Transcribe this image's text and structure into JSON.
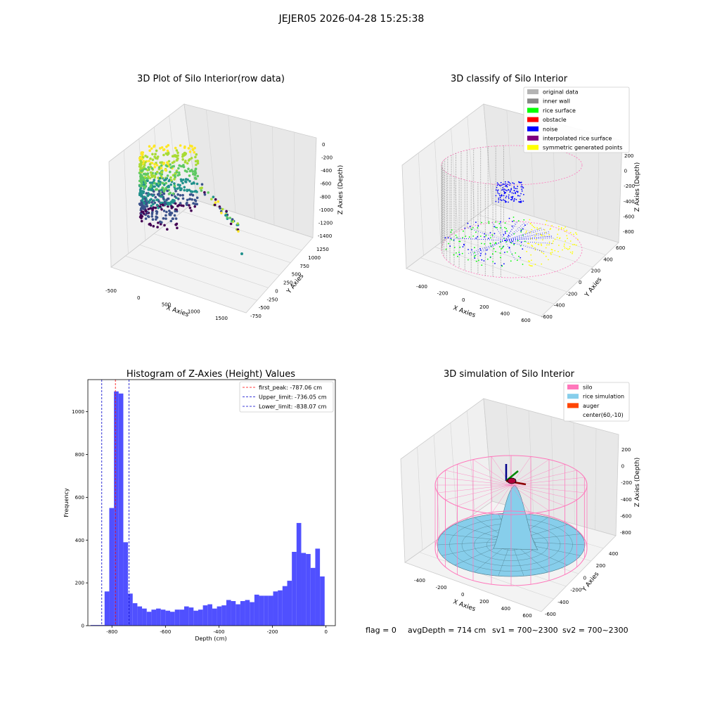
{
  "figure": {
    "suptitle": "JEJER05 2026-04-28 15:25:38",
    "footer": {
      "flag": "flag = 0",
      "avg_depth": "avgDepth = 714 cm",
      "sv1": "sv1 = 700~2300",
      "sv2": "sv2 = 700~2300"
    }
  },
  "colors": {
    "hist_bar": "#5050ff",
    "first_peak": "#ff0000",
    "limits": "#0000cc",
    "silo_wire": "#ff77bb",
    "rice_sim": "#87ceeb",
    "auger": "#ff4500",
    "original": "#b4b4b4",
    "inner_wall": "#888888",
    "rice_surface": "#00ff00",
    "obstacle": "#ff0000",
    "noise": "#0000ff",
    "interp": "#800080",
    "symmetric": "#ffff00"
  },
  "panels": {
    "raw": {
      "title": "3D Plot of Silo Interior(row data)",
      "x_label": "X Axies",
      "y_label": "Y Axies",
      "z_label": "Z Axies (Depth)",
      "x_ticks": [
        "-500",
        "0",
        "500",
        "1000",
        "1500"
      ],
      "y_ticks": [
        "1250",
        "1000",
        "750",
        "500",
        "250",
        "0",
        "-250",
        "-500",
        "-750"
      ],
      "z_ticks": [
        "0",
        "-200",
        "-400",
        "-600",
        "-800",
        "-1000",
        "-1200",
        "-1400"
      ]
    },
    "classify": {
      "title": "3D classify of Silo Interior",
      "x_label": "X Axies",
      "y_label": "Y Axies",
      "z_label": "Z Axies (Depth)",
      "x_ticks": [
        "-400",
        "-200",
        "0",
        "200",
        "400",
        "600"
      ],
      "y_ticks": [
        "600",
        "400",
        "200",
        "0",
        "-200",
        "-400",
        "-600"
      ],
      "z_ticks": [
        "200",
        "0",
        "-200",
        "-400",
        "-600",
        "-800"
      ],
      "legend": [
        "original data",
        "inner wall",
        "rice surface",
        "obstacle",
        "noise",
        "interpolated rice surface",
        "symmetric generated points"
      ]
    },
    "simulation": {
      "title": "3D simulation of Silo Interior",
      "x_label": "X Axies",
      "y_label": "Y Axies",
      "z_label": "Z Axies (Depth)",
      "x_ticks": [
        "-400",
        "-200",
        "0",
        "200",
        "400",
        "600"
      ],
      "y_ticks": [
        "400",
        "200",
        "0",
        "-200",
        "-400",
        "-600"
      ],
      "z_ticks": [
        "200",
        "0",
        "-200",
        "-400",
        "-600",
        "-800"
      ],
      "legend": [
        "silo",
        "rice simulation",
        "auger",
        "center(60,-10)"
      ]
    }
  },
  "chart_data": {
    "type": "bar",
    "title": "Histogram of Z-Axies (Height) Values",
    "xlabel": "Depth (cm)",
    "ylabel": "Frequency",
    "xlim": [
      -890,
      35
    ],
    "ylim": [
      0,
      1150
    ],
    "x_ticks": [
      -800,
      -600,
      -400,
      -200,
      0
    ],
    "y_ticks": [
      0,
      200,
      400,
      600,
      800,
      1000
    ],
    "bin_start": -880,
    "bin_width": 17.5,
    "values": [
      3,
      3,
      3,
      160,
      550,
      1095,
      1085,
      390,
      150,
      105,
      90,
      80,
      65,
      75,
      80,
      75,
      70,
      65,
      75,
      75,
      90,
      85,
      70,
      75,
      95,
      100,
      80,
      90,
      95,
      120,
      115,
      100,
      115,
      120,
      110,
      145,
      140,
      140,
      140,
      160,
      165,
      185,
      210,
      345,
      480,
      340,
      335,
      270,
      360,
      230
    ],
    "lines": [
      {
        "name": "first_peak: -787.06 cm",
        "x": -787.06
      },
      {
        "name": "Upper_limit: -736.05 cm",
        "x": -736.05
      },
      {
        "name": "Lower_limit: -838.07 cm",
        "x": -838.07
      }
    ],
    "legend_position": "top-right"
  }
}
